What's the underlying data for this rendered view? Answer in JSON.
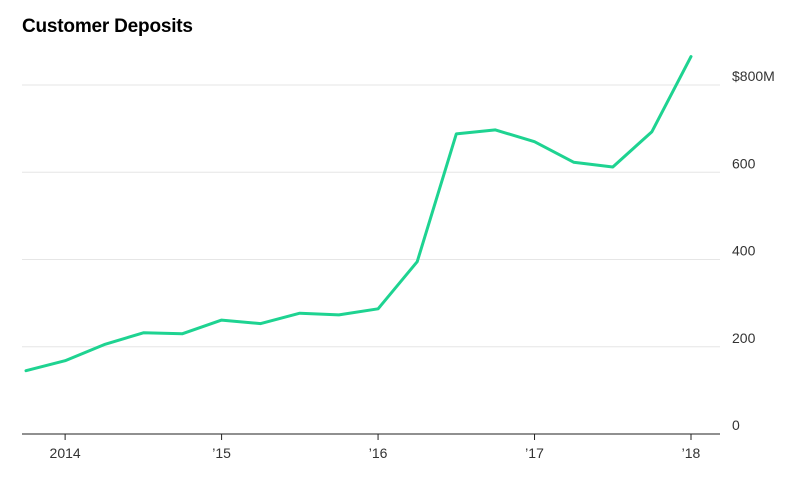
{
  "chart_data": {
    "type": "line",
    "title": "Customer Deposits",
    "xlabel": "",
    "ylabel": "",
    "ylim": [
      0,
      800
    ],
    "y_ticks": [
      {
        "value": 0,
        "label": "0"
      },
      {
        "value": 200,
        "label": "200"
      },
      {
        "value": 400,
        "label": "400"
      },
      {
        "value": 600,
        "label": "600"
      },
      {
        "value": 800,
        "label": "$800M"
      }
    ],
    "x_ticks": [
      {
        "value": 2014.0,
        "label": "2014"
      },
      {
        "value": 2015.0,
        "label": "’15"
      },
      {
        "value": 2016.0,
        "label": "’16"
      },
      {
        "value": 2017.0,
        "label": "’17"
      },
      {
        "value": 2018.0,
        "label": "’18"
      }
    ],
    "xlim": [
      2013.75,
      2018.2
    ],
    "grid": true,
    "line_color": "#1ed391",
    "series": [
      {
        "x": [
          2013.75,
          2014.0,
          2014.25,
          2014.5,
          2014.75,
          2015.0,
          2015.25,
          2015.5,
          2015.75,
          2016.0,
          2016.25,
          2016.5,
          2016.75,
          2017.0,
          2017.25,
          2017.5,
          2017.75,
          2018.0
        ],
        "values": [
          145,
          168,
          205,
          232,
          230,
          261,
          253,
          277,
          273,
          287,
          395,
          688,
          697,
          670,
          623,
          612,
          693,
          865
        ]
      }
    ]
  }
}
